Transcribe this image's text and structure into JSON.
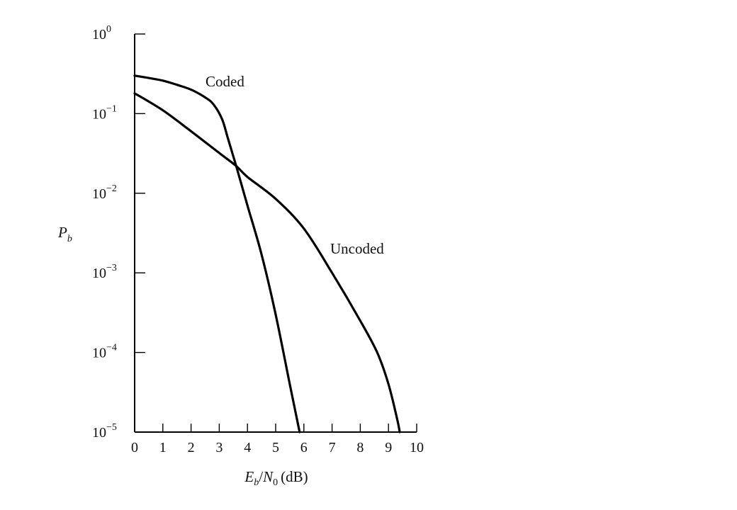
{
  "chart_data": {
    "type": "line",
    "x_label": {
      "var": "E",
      "var_sub": "b",
      "sep": "/",
      "var2": "N",
      "var2_sub": "0",
      "unit": "(dB)"
    },
    "y_label": {
      "var": "P",
      "var_sub": "b"
    },
    "y_scale": "log",
    "xlim": [
      0,
      10
    ],
    "ylim": [
      1e-05,
      1
    ],
    "x_ticks": [
      0,
      1,
      2,
      3,
      4,
      5,
      6,
      7,
      8,
      9,
      10
    ],
    "y_ticks": [
      {
        "value": 1,
        "base": "10",
        "exp": "0"
      },
      {
        "value": 0.1,
        "base": "10",
        "exp": "−1"
      },
      {
        "value": 0.01,
        "base": "10",
        "exp": "−2"
      },
      {
        "value": 0.001,
        "base": "10",
        "exp": "−3"
      },
      {
        "value": 0.0001,
        "base": "10",
        "exp": "−4"
      },
      {
        "value": 1e-05,
        "base": "10",
        "exp": "−5"
      }
    ],
    "series": [
      {
        "name": "Coded",
        "x": [
          0,
          0.5,
          1,
          1.5,
          2,
          2.5,
          2.8,
          3.1,
          3.3,
          3.6,
          4,
          4.5,
          5,
          5.5,
          5.85
        ],
        "y": [
          0.3,
          0.28,
          0.26,
          0.23,
          0.2,
          0.16,
          0.13,
          0.085,
          0.05,
          0.022,
          0.007,
          0.0017,
          0.0003,
          4e-05,
          1e-05
        ]
      },
      {
        "name": "Uncoded",
        "x": [
          0,
          1,
          2,
          3,
          3.6,
          4,
          5,
          6,
          7,
          8,
          8.6,
          9,
          9.3,
          9.4
        ],
        "y": [
          0.18,
          0.11,
          0.06,
          0.032,
          0.022,
          0.016,
          0.0085,
          0.0036,
          0.001,
          0.00025,
          0.0001,
          4e-05,
          1.5e-05,
          1e-05
        ]
      }
    ]
  }
}
